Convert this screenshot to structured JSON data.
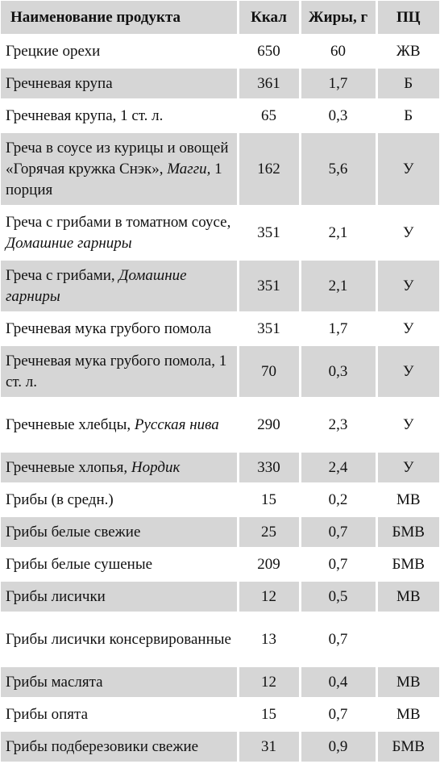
{
  "header": {
    "name": "Наименование продукта",
    "kcal": "Ккал",
    "fat": "Жиры, г",
    "pc": "ПЦ"
  },
  "rows": [
    {
      "name": "Грецкие орехи",
      "note": "",
      "suffix": "",
      "kcal": "650",
      "fat": "60",
      "pc": "ЖВ"
    },
    {
      "name": "Гречневая крупа",
      "note": "",
      "suffix": "",
      "kcal": "361",
      "fat": "1,7",
      "pc": "Б"
    },
    {
      "name": "Гречневая крупа, 1 ст. л.",
      "note": "",
      "suffix": "",
      "kcal": "65",
      "fat": "0,3",
      "pc": "Б"
    },
    {
      "name": "Греча в соусе из курицы и овощей «Горячая кружка Снэк», ",
      "note": "Магги,",
      "suffix": " 1 порция",
      "kcal": "162",
      "fat": "5,6",
      "pc": "У"
    },
    {
      "name": "Греча с грибами в томатном соусе, ",
      "note": "Домашние гарниры",
      "suffix": "",
      "kcal": "351",
      "fat": "2,1",
      "pc": "У"
    },
    {
      "name": "Греча с грибами, ",
      "note": "Домашние гарниры",
      "suffix": "",
      "kcal": "351",
      "fat": "2,1",
      "pc": "У"
    },
    {
      "name": "Гречневая мука грубого помола",
      "note": "",
      "suffix": "",
      "kcal": "351",
      "fat": "1,7",
      "pc": "У"
    },
    {
      "name": "Гречневая мука грубого помола, 1 ст. л.",
      "note": "",
      "suffix": "",
      "kcal": "70",
      "fat": "0,3",
      "pc": "У"
    },
    {
      "name": "Гречневые хлебцы, ",
      "note": "Русская нива",
      "suffix": "",
      "kcal": "290",
      "fat": "2,3",
      "pc": "У"
    },
    {
      "name": "Гречневые хлопья, ",
      "note": "Нордик",
      "suffix": "",
      "kcal": "330",
      "fat": "2,4",
      "pc": "У"
    },
    {
      "name": "Грибы (в средн.)",
      "note": "",
      "suffix": "",
      "kcal": "15",
      "fat": "0,2",
      "pc": "МВ"
    },
    {
      "name": "Грибы белые свежие",
      "note": "",
      "suffix": "",
      "kcal": "25",
      "fat": "0,7",
      "pc": "БМВ"
    },
    {
      "name": "Грибы белые сушеные",
      "note": "",
      "suffix": "",
      "kcal": "209",
      "fat": "0,7",
      "pc": "БМВ"
    },
    {
      "name": "Грибы лисички",
      "note": "",
      "suffix": "",
      "kcal": "12",
      "fat": "0,5",
      "pc": "МВ"
    },
    {
      "name": "Грибы лисички консервированные",
      "note": "",
      "suffix": "",
      "kcal": "13",
      "fat": "0,7",
      "pc": ""
    },
    {
      "name": "Грибы маслята",
      "note": "",
      "suffix": "",
      "kcal": "12",
      "fat": "0,4",
      "pc": "МВ"
    },
    {
      "name": "Грибы опята",
      "note": "",
      "suffix": "",
      "kcal": "15",
      "fat": "0,7",
      "pc": "МВ"
    },
    {
      "name": "Грибы подберезовики свежие",
      "note": "",
      "suffix": "",
      "kcal": "31",
      "fat": "0,9",
      "pc": "БМВ"
    }
  ]
}
